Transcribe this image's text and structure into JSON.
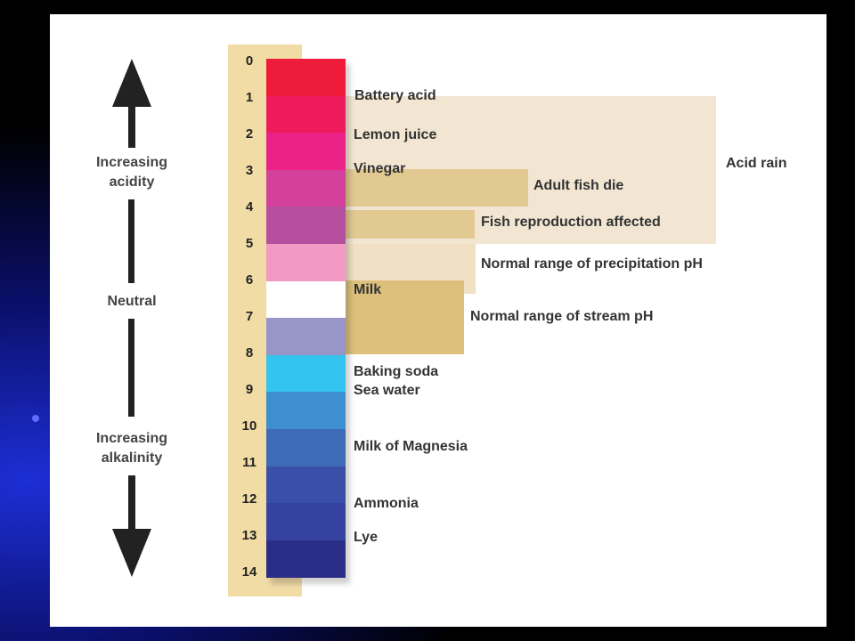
{
  "diagram": {
    "ph_numbers": [
      "0",
      "1",
      "2",
      "3",
      "4",
      "5",
      "6",
      "7",
      "8",
      "9",
      "10",
      "11",
      "12",
      "13",
      "14"
    ],
    "band_colors": [
      "#ee1c3a",
      "#ee1b5c",
      "#ea2288",
      "#d3419a",
      "#b64f9e",
      "#f29ac4",
      "#ffffff",
      "#9896c9",
      "#33c5ef",
      "#3d8fd0",
      "#3d6bb6",
      "#3a4fa7",
      "#3642a0",
      "#2a2e86"
    ],
    "substances": {
      "battery_acid": "Battery acid",
      "lemon_juice": "Lemon juice",
      "vinegar": "Vinegar",
      "milk": "Milk",
      "baking_soda": "Baking soda",
      "sea_water": "Sea water",
      "milk_of_magnesia": "Milk of Magnesia",
      "ammonia": "Ammonia",
      "lye": "Lye"
    },
    "ranges": {
      "acid_rain": "Acid rain",
      "adult_fish_die": "Adult fish die",
      "fish_reproduction": "Fish reproduction affected",
      "precipitation": "Normal range of precipitation pH",
      "stream": "Normal range of stream pH"
    },
    "side_labels": {
      "acidity_line1": "Increasing",
      "acidity_line2": "acidity",
      "neutral": "Neutral",
      "alkalinity_line1": "Increasing",
      "alkalinity_line2": "alkalinity"
    },
    "colors": {
      "strip": "#f1dca6",
      "acid_rain_box": "#f2e6d3",
      "fish_box": "#e2c992",
      "precipitation_box": "#f0e1c4",
      "stream_box": "#dcc07c"
    }
  }
}
